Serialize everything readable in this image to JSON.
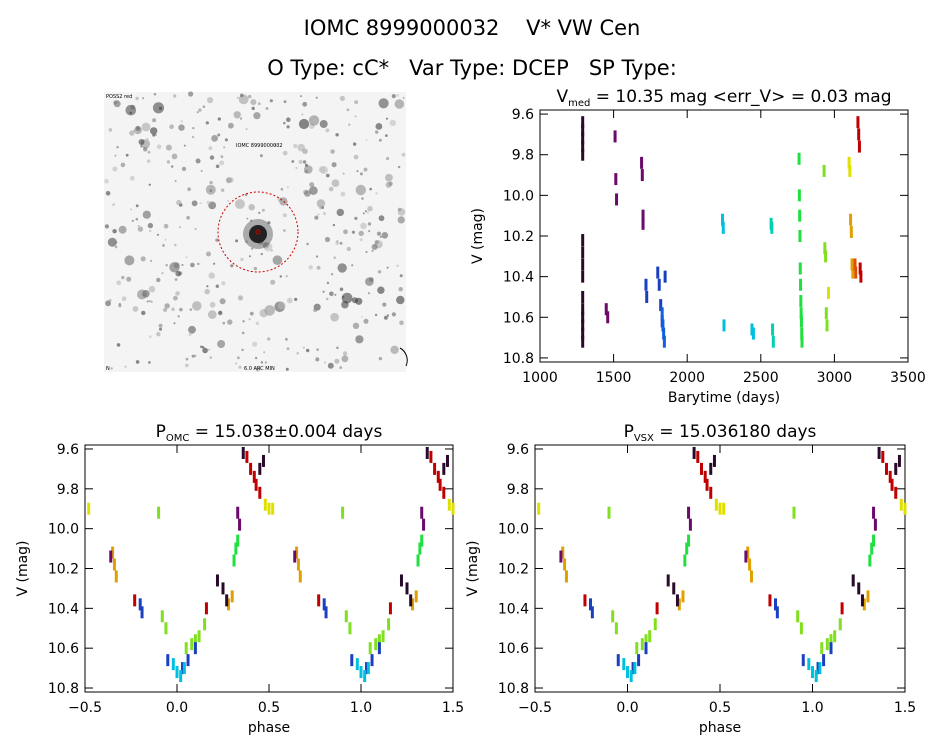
{
  "header": {
    "line1": "IOMC 8999000032    V* VW Cen",
    "line2": "O Type: cC*   Var Type: DCEP   SP Type:"
  },
  "finder": {
    "top_left_label": "POSS2 red",
    "target_label": "IOMC 8999000032",
    "bottom_left_label": "N",
    "bottom_center_label": "6.0 ARC MIN"
  },
  "colors": {
    "axis": "#000000",
    "background": "#ffffff",
    "circle": "#cc0000",
    "palette": [
      "#2a0a2a",
      "#6a0a6a",
      "#1a40c0",
      "#00a0e0",
      "#00d0c0",
      "#20e040",
      "#80e020",
      "#e0e000",
      "#e0a000",
      "#e05000",
      "#c00000"
    ]
  },
  "chart_data": [
    {
      "type": "scatter",
      "title": "V_med = 10.35 mag <err_V> = 0.03 mag",
      "title_main": "V",
      "title_sub": "med",
      "title_rest": " = 10.35 mag <err_V> = 0.03 mag",
      "xlabel": "Barytime (days)",
      "ylabel": "V (mag)",
      "xlim": [
        1000,
        3500
      ],
      "ylim": [
        10.82,
        9.58
      ],
      "xticks": [
        1000,
        1500,
        2000,
        2500,
        3000,
        3500
      ],
      "yticks": [
        9.6,
        9.8,
        10.0,
        10.2,
        10.4,
        10.6,
        10.8
      ],
      "ytick_labels": [
        "9.6",
        "9.8",
        "10.0",
        "10.2",
        "10.4",
        "10.6",
        "10.8"
      ],
      "series": [
        {
          "color": "#2a0a2a",
          "x": [
            1290,
            1290,
            1290,
            1290,
            1290,
            1290,
            1290,
            1290,
            1290,
            1290,
            1290,
            1290,
            1290,
            1290,
            1290
          ],
          "y": [
            9.64,
            9.68,
            9.72,
            9.76,
            9.8,
            10.22,
            10.28,
            10.34,
            10.4,
            10.5,
            10.56,
            10.6,
            10.64,
            10.68,
            10.72
          ]
        },
        {
          "color": "#6a0a6a",
          "x": [
            1450,
            1460,
            1510,
            1515,
            1520,
            1690,
            1695,
            1700,
            1700
          ],
          "y": [
            10.56,
            10.6,
            9.71,
            9.92,
            10.02,
            9.84,
            9.9,
            10.1,
            10.14
          ]
        },
        {
          "color": "#1a40c0",
          "x": [
            1720,
            1725,
            1800,
            1810,
            1820,
            1830,
            1850
          ],
          "y": [
            10.44,
            10.5,
            10.38,
            10.44,
            10.54,
            10.62,
            10.4
          ]
        },
        {
          "color": "#1060e0",
          "x": [
            1830,
            1835,
            1840,
            1845
          ],
          "y": [
            10.58,
            10.64,
            10.68,
            10.72
          ]
        },
        {
          "color": "#00c0e0",
          "x": [
            2240,
            2245,
            2250,
            2440,
            2450
          ],
          "y": [
            10.12,
            10.16,
            10.64,
            10.66,
            10.68
          ]
        },
        {
          "color": "#00d0b0",
          "x": [
            2570,
            2575,
            2580,
            2585
          ],
          "y": [
            10.14,
            10.16,
            10.66,
            10.72
          ]
        },
        {
          "color": "#20e040",
          "x": [
            2760,
            2762,
            2764,
            2766,
            2768,
            2770,
            2772,
            2774,
            2776,
            2778,
            2780
          ],
          "y": [
            9.82,
            10.0,
            10.1,
            10.2,
            10.36,
            10.44,
            10.52,
            10.58,
            10.62,
            10.68,
            10.72
          ]
        },
        {
          "color": "#80e020",
          "x": [
            2930,
            2935,
            2940,
            2945,
            2950
          ],
          "y": [
            9.88,
            10.26,
            10.3,
            10.58,
            10.64
          ]
        },
        {
          "color": "#e0e000",
          "x": [
            2960,
            3100,
            3105
          ],
          "y": [
            10.48,
            9.84,
            9.88
          ]
        },
        {
          "color": "#e0a000",
          "x": [
            3110,
            3115,
            3120,
            3125
          ],
          "y": [
            10.12,
            10.18,
            10.34,
            10.38
          ]
        },
        {
          "color": "#e05000",
          "x": [
            3140,
            3145
          ],
          "y": [
            10.34,
            10.38
          ]
        },
        {
          "color": "#c00000",
          "x": [
            3160,
            3165,
            3170,
            3175,
            3180
          ],
          "y": [
            9.64,
            9.7,
            9.76,
            10.36,
            10.4
          ]
        }
      ]
    },
    {
      "type": "scatter",
      "title": "P_OMC = 15.038±0.004 days",
      "title_main": "P",
      "title_sub": "OMC",
      "title_rest": " = 15.038±0.004 days",
      "xlabel": "phase",
      "ylabel": "V (mag)",
      "xlim": [
        -0.5,
        1.5
      ],
      "ylim": [
        10.82,
        9.58
      ],
      "xticks": [
        -0.5,
        0.0,
        0.5,
        1.0,
        1.5
      ],
      "xtick_labels": [
        "−0.5",
        "0.0",
        "0.5",
        "1.0",
        "1.5"
      ],
      "yticks": [
        9.6,
        9.8,
        10.0,
        10.2,
        10.4,
        10.6,
        10.8
      ],
      "ytick_labels": [
        "9.6",
        "9.8",
        "10.0",
        "10.2",
        "10.4",
        "10.6",
        "10.8"
      ],
      "phase_points": [
        {
          "color": "#80e020",
          "x": [
            -0.1,
            -0.08,
            -0.06,
            0.05,
            0.08,
            0.1,
            0.12,
            0.15
          ],
          "y": [
            9.92,
            10.44,
            10.5,
            10.6,
            10.58,
            10.56,
            10.54,
            10.48
          ]
        },
        {
          "color": "#1a40c0",
          "x": [
            -0.2,
            -0.19,
            -0.05,
            0.03,
            0.06,
            0.1
          ],
          "y": [
            10.38,
            10.42,
            10.66,
            10.7,
            10.66,
            10.6
          ]
        },
        {
          "color": "#00c0e0",
          "x": [
            -0.02,
            0.0,
            0.02,
            0.04
          ],
          "y": [
            10.68,
            10.72,
            10.74,
            10.7
          ]
        },
        {
          "color": "#e0a000",
          "x": [
            -0.35,
            -0.34,
            -0.33,
            0.28,
            0.3
          ],
          "y": [
            10.12,
            10.18,
            10.24,
            10.38,
            10.34
          ]
        },
        {
          "color": "#c00000",
          "x": [
            0.16,
            0.38,
            0.4,
            0.42,
            0.43,
            0.45,
            -0.23
          ],
          "y": [
            10.4,
            9.64,
            9.7,
            9.74,
            9.78,
            9.82,
            10.36
          ]
        },
        {
          "color": "#2a0a2a",
          "x": [
            0.22,
            0.25,
            0.27,
            0.45,
            0.47,
            0.36
          ],
          "y": [
            10.26,
            10.3,
            10.36,
            9.7,
            9.66,
            9.62
          ]
        },
        {
          "color": "#6a0a6a",
          "x": [
            0.33,
            0.34,
            -0.36
          ],
          "y": [
            9.92,
            9.98,
            10.14
          ]
        },
        {
          "color": "#20e040",
          "x": [
            0.32,
            0.31,
            0.33
          ],
          "y": [
            10.1,
            10.16,
            10.06
          ]
        },
        {
          "color": "#e0e000",
          "x": [
            0.48,
            0.5,
            -0.48
          ],
          "y": [
            9.88,
            9.9,
            9.9
          ]
        }
      ]
    },
    {
      "type": "scatter",
      "title": "P_VSX = 15.036180 days",
      "title_main": "P",
      "title_sub": "VSX",
      "title_rest": " = 15.036180 days",
      "xlabel": "phase",
      "ylabel": "V (mag)",
      "xlim": [
        -0.5,
        1.5
      ],
      "ylim": [
        10.82,
        9.58
      ],
      "xticks": [
        -0.5,
        0.0,
        0.5,
        1.0,
        1.5
      ],
      "xtick_labels": [
        "−0.5",
        "0.0",
        "0.5",
        "1.0",
        "1.5"
      ],
      "yticks": [
        9.6,
        9.8,
        10.0,
        10.2,
        10.4,
        10.6,
        10.8
      ],
      "ytick_labels": [
        "9.6",
        "9.8",
        "10.0",
        "10.2",
        "10.4",
        "10.6",
        "10.8"
      ],
      "phase_points": [
        {
          "color": "#80e020",
          "x": [
            -0.1,
            -0.08,
            -0.06,
            0.05,
            0.08,
            0.1,
            0.12,
            0.15
          ],
          "y": [
            9.92,
            10.44,
            10.5,
            10.6,
            10.58,
            10.56,
            10.54,
            10.48
          ]
        },
        {
          "color": "#1a40c0",
          "x": [
            -0.2,
            -0.19,
            -0.05,
            0.03,
            0.06,
            0.1
          ],
          "y": [
            10.38,
            10.42,
            10.66,
            10.7,
            10.66,
            10.6
          ]
        },
        {
          "color": "#00c0e0",
          "x": [
            -0.02,
            0.0,
            0.02,
            0.04
          ],
          "y": [
            10.68,
            10.72,
            10.74,
            10.7
          ]
        },
        {
          "color": "#e0a000",
          "x": [
            -0.35,
            -0.34,
            -0.33,
            0.28,
            0.3
          ],
          "y": [
            10.12,
            10.18,
            10.24,
            10.38,
            10.34
          ]
        },
        {
          "color": "#c00000",
          "x": [
            0.16,
            0.38,
            0.4,
            0.42,
            0.43,
            0.45,
            -0.23
          ],
          "y": [
            10.4,
            9.64,
            9.7,
            9.74,
            9.78,
            9.82,
            10.36
          ]
        },
        {
          "color": "#2a0a2a",
          "x": [
            0.22,
            0.25,
            0.27,
            0.45,
            0.47,
            0.36
          ],
          "y": [
            10.26,
            10.3,
            10.36,
            9.7,
            9.66,
            9.62
          ]
        },
        {
          "color": "#6a0a6a",
          "x": [
            0.33,
            0.34,
            -0.36
          ],
          "y": [
            9.92,
            9.98,
            10.14
          ]
        },
        {
          "color": "#20e040",
          "x": [
            0.32,
            0.31,
            0.33
          ],
          "y": [
            10.1,
            10.16,
            10.06
          ]
        },
        {
          "color": "#e0e000",
          "x": [
            0.48,
            0.5,
            -0.48
          ],
          "y": [
            9.88,
            9.9,
            9.9
          ]
        }
      ]
    }
  ]
}
